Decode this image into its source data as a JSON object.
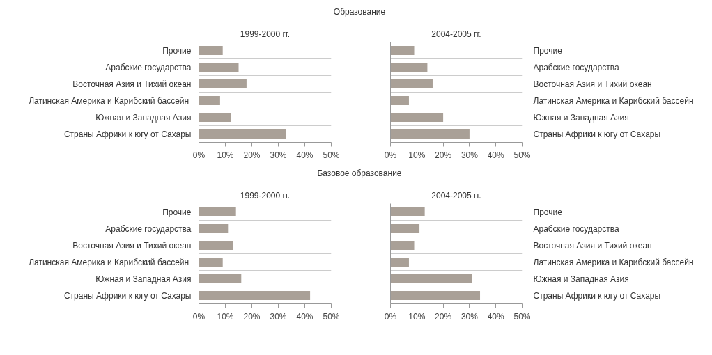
{
  "chart_data": [
    {
      "type": "bar",
      "orientation": "horizontal",
      "annotations": [
        "Образование"
      ],
      "title": "1999-2000 гг.",
      "categories": [
        "Прочие",
        "Арабские государства",
        "Восточная Азия и Тихий океан",
        "Латинская Америка и Карибский  бассейн",
        "Южная и Западная Азия",
        "Страны Африки к югу от Сахары"
      ],
      "values": [
        9,
        15,
        18,
        8,
        12,
        33
      ],
      "color": "#a9a097",
      "xlim": [
        0,
        50
      ],
      "xticks": [
        {
          "value": 0,
          "label": "0%"
        },
        {
          "value": 10,
          "label": "10%"
        },
        {
          "value": 20,
          "label": "20%"
        },
        {
          "value": 30,
          "label": "30%"
        },
        {
          "value": 40,
          "label": "40%"
        },
        {
          "value": 50,
          "label": "50%"
        }
      ],
      "grid": "y",
      "legend": false
    },
    {
      "type": "bar",
      "orientation": "horizontal",
      "title": "2004-2005 гг.",
      "categories": [
        "Прочие",
        "Арабские государства",
        "Восточная Азия и Тихий океан",
        "Латинская Америка и Карибский  бассейн",
        "Южная и Западная Азия",
        "Страны Африки к югу от Сахары"
      ],
      "values": [
        9,
        14,
        16,
        7,
        20,
        30
      ],
      "color": "#a9a097",
      "xlim": [
        0,
        50
      ],
      "xticks": [
        {
          "value": 0,
          "label": "0%"
        },
        {
          "value": 10,
          "label": "10%"
        },
        {
          "value": 20,
          "label": "20%"
        },
        {
          "value": 30,
          "label": "30%"
        },
        {
          "value": 40,
          "label": "40%"
        },
        {
          "value": 50,
          "label": "50%"
        }
      ],
      "grid": "y",
      "legend": false
    },
    {
      "type": "bar",
      "orientation": "horizontal",
      "annotations": [
        "Базовое образование"
      ],
      "title": "1999-2000 гг.",
      "categories": [
        "Прочие",
        "Арабские государства",
        "Восточная Азия и Тихий океан",
        "Латинская Америка и Карибский  бассейн",
        "Южная и Западная Азия",
        "Страны Африки к югу от Сахары"
      ],
      "values": [
        14,
        11,
        13,
        9,
        16,
        42
      ],
      "color": "#a9a097",
      "xlim": [
        0,
        50
      ],
      "xticks": [
        {
          "value": 0,
          "label": "0%"
        },
        {
          "value": 10,
          "label": "10%"
        },
        {
          "value": 20,
          "label": "20%"
        },
        {
          "value": 30,
          "label": "30%"
        },
        {
          "value": 40,
          "label": "40%"
        },
        {
          "value": 50,
          "label": "50%"
        }
      ],
      "grid": "y",
      "legend": false
    },
    {
      "type": "bar",
      "orientation": "horizontal",
      "title": "2004-2005 гг.",
      "categories": [
        "Прочие",
        "Арабские государства",
        "Восточная Азия и Тихий океан",
        "Латинская Америка и Карибский  бассейн",
        "Южная и Западная Азия",
        "Страны Африки к югу от Сахары"
      ],
      "values": [
        13,
        11,
        9,
        7,
        31,
        34
      ],
      "color": "#a9a097",
      "xlim": [
        0,
        50
      ],
      "xticks": [
        {
          "value": 0,
          "label": "0%"
        },
        {
          "value": 10,
          "label": "10%"
        },
        {
          "value": 20,
          "label": "20%"
        },
        {
          "value": 30,
          "label": "30%"
        },
        {
          "value": 40,
          "label": "40%"
        },
        {
          "value": 50,
          "label": "50%"
        }
      ],
      "grid": "y",
      "legend": false
    }
  ]
}
